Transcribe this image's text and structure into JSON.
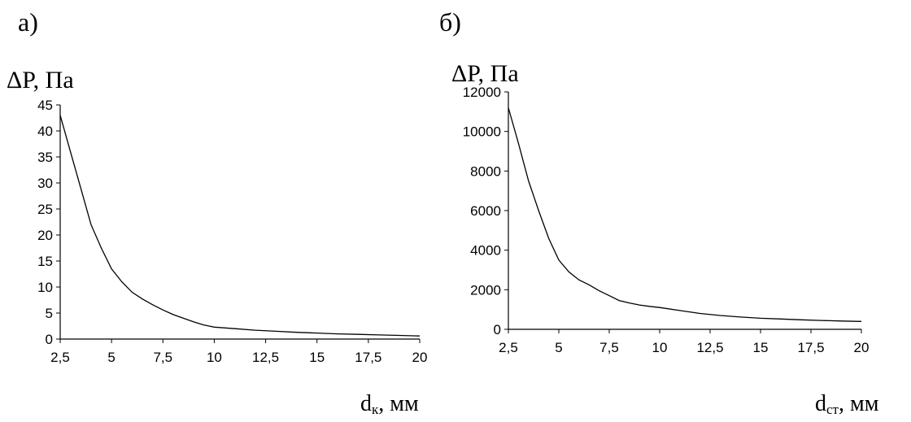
{
  "chart_data": [
    {
      "type": "line",
      "panel_label": "а)",
      "ylabel": "ΔP, Па",
      "xlabel_main": "d",
      "xlabel_sub": "к",
      "xlabel_unit": ", мм",
      "xlim": [
        2.5,
        20
      ],
      "ylim": [
        0,
        45
      ],
      "x_ticks": [
        "2,5",
        "5",
        "7,5",
        "10",
        "12,5",
        "15",
        "17,5",
        "20"
      ],
      "y_ticks": [
        "0",
        "5",
        "10",
        "15",
        "20",
        "25",
        "30",
        "35",
        "40",
        "45"
      ],
      "series": [
        {
          "x": [
            2.5,
            3,
            3.5,
            4,
            4.5,
            5,
            5.5,
            6,
            6.5,
            7,
            7.5,
            8,
            8.5,
            9,
            9.5,
            10,
            11,
            12,
            13,
            14,
            15,
            16,
            17,
            18,
            19,
            20
          ],
          "y": [
            43,
            36,
            29,
            22,
            17.5,
            13.5,
            11,
            9,
            7.7,
            6.6,
            5.6,
            4.7,
            4,
            3.3,
            2.7,
            2.3,
            2,
            1.7,
            1.5,
            1.3,
            1.15,
            1.0,
            0.9,
            0.8,
            0.7,
            0.6
          ]
        }
      ]
    },
    {
      "type": "line",
      "panel_label": "б)",
      "ylabel": "ΔP, Па",
      "xlabel_main": "d",
      "xlabel_sub": "ст",
      "xlabel_unit": ", мм",
      "xlim": [
        2.5,
        20
      ],
      "ylim": [
        0,
        12000
      ],
      "x_ticks": [
        "2,5",
        "5",
        "7,5",
        "10",
        "12,5",
        "15",
        "17,5",
        "20"
      ],
      "y_ticks": [
        "0",
        "2000",
        "4000",
        "6000",
        "8000",
        "10000",
        "12000"
      ],
      "series": [
        {
          "x": [
            2.5,
            3,
            3.5,
            4,
            4.5,
            5,
            5.5,
            6,
            6.5,
            7,
            7.5,
            8,
            8.5,
            9,
            9.5,
            10,
            11,
            12,
            13,
            14,
            15,
            16,
            17,
            18,
            19,
            20
          ],
          "y": [
            11200,
            9400,
            7500,
            6000,
            4600,
            3500,
            2900,
            2500,
            2250,
            1950,
            1700,
            1450,
            1330,
            1230,
            1160,
            1100,
            950,
            800,
            700,
            620,
            560,
            520,
            480,
            450,
            420,
            400
          ]
        }
      ]
    }
  ]
}
